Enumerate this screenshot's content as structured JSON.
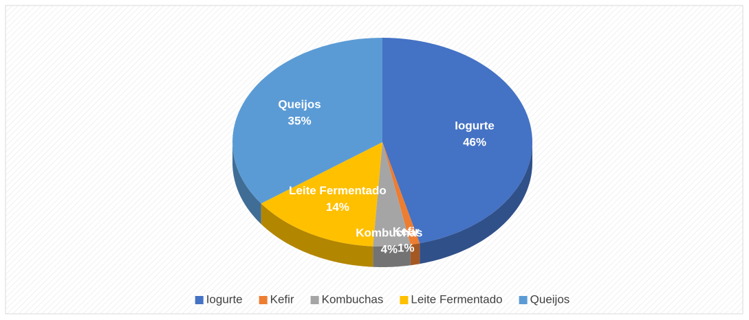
{
  "chart_data": {
    "type": "pie",
    "categories": [
      "Iogurte",
      "Kefir",
      "Kombuchas",
      "Leite Fermentado",
      "Queijos"
    ],
    "values": [
      46,
      1,
      4,
      14,
      35
    ],
    "value_labels": [
      "46%",
      "1%",
      "4%",
      "14%",
      "35%"
    ],
    "colors": [
      "#4472c4",
      "#ed7d31",
      "#a5a5a5",
      "#ffc000",
      "#5b9bd5"
    ],
    "legend": "bottom"
  }
}
